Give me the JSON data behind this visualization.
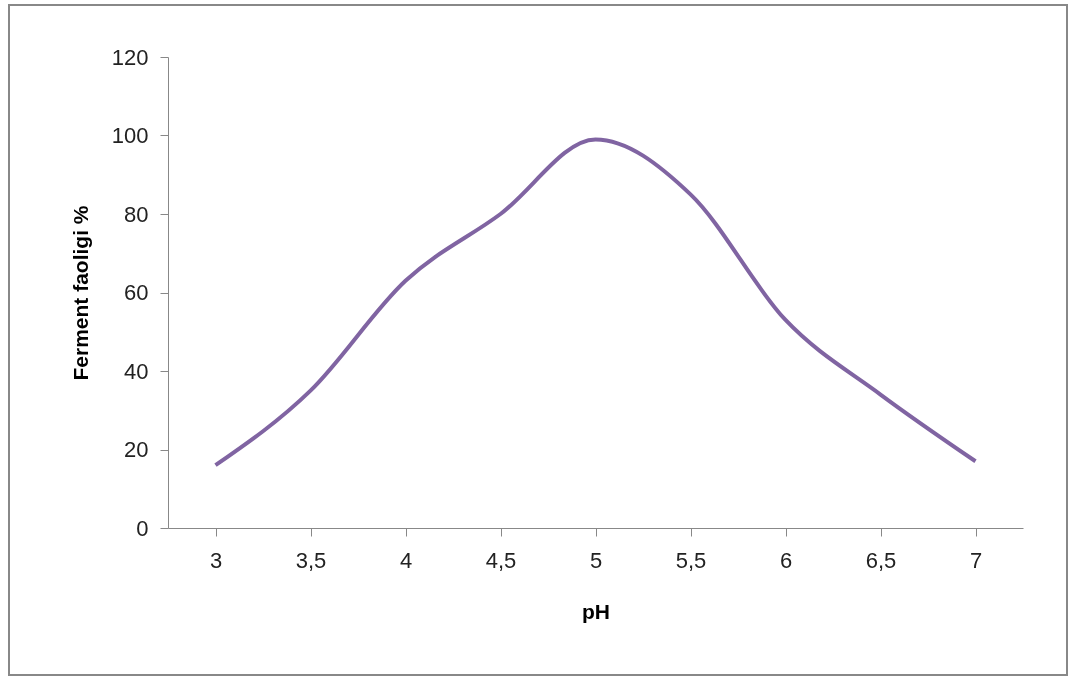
{
  "chart_data": {
    "type": "line",
    "xlabel": "pH",
    "ylabel": "Ferment faoligi %",
    "categories": [
      "3",
      "3,5",
      "4",
      "4,5",
      "5",
      "5,5",
      "6",
      "6,5",
      "7"
    ],
    "series": [
      {
        "color": "#8064a2",
        "values": [
          16,
          35,
          63,
          80,
          99,
          85,
          53,
          34,
          17
        ]
      }
    ],
    "ylim": [
      0,
      120
    ],
    "yticks": [
      0,
      20,
      40,
      60,
      80,
      100,
      120
    ],
    "grid": false,
    "marker": "none",
    "line_style": "solid"
  }
}
